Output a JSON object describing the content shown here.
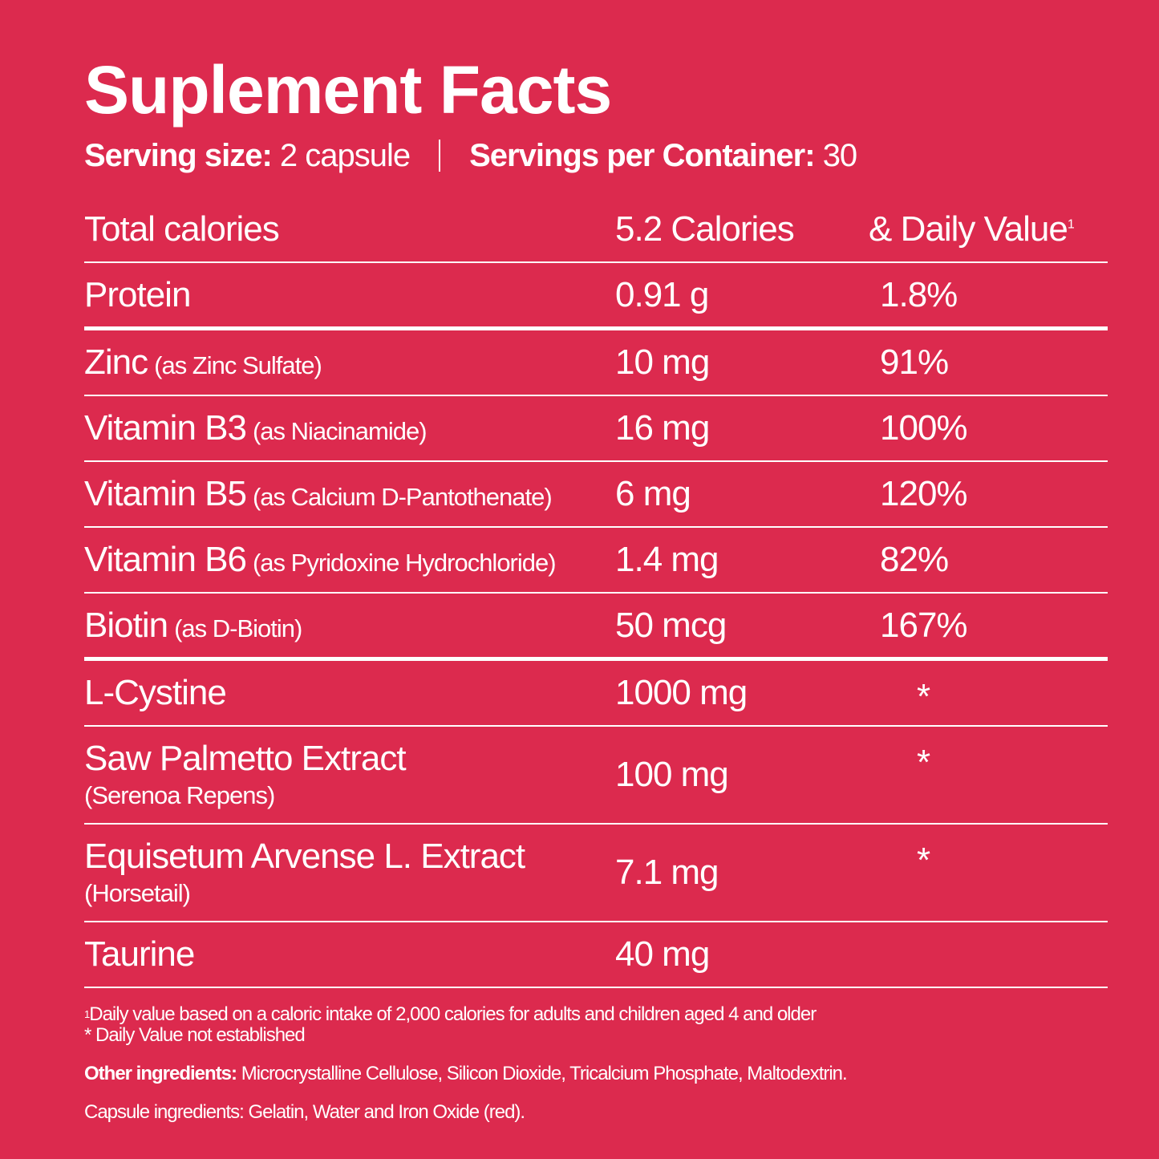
{
  "title": "Suplement Facts",
  "serving": {
    "size_label": "Serving size:",
    "size_value": "2 capsule",
    "servings_label": "Servings per Container:",
    "servings_value": "30"
  },
  "header": {
    "name": "Total calories",
    "amount": "5.2 Calories",
    "dv": "& Daily Value",
    "dv_sup": "1"
  },
  "rows": [
    {
      "name": "Protein",
      "amount": "0.91 g",
      "dv": "1.8%"
    },
    {
      "name": "Zinc",
      "note": "(as Zinc Sulfate)",
      "amount": "10 mg",
      "dv": "91%"
    },
    {
      "name": "Vitamin B3",
      "note": "(as Niacinamide)",
      "amount": "16 mg",
      "dv": "100%"
    },
    {
      "name": "Vitamin B5",
      "note": "(as Calcium D-Pantothenate)",
      "amount": "6 mg",
      "dv": "120%"
    },
    {
      "name": "Vitamin B6",
      "note": "(as Pyridoxine Hydrochloride)",
      "amount": "1.4 mg",
      "dv": "82%"
    },
    {
      "name": "Biotin",
      "note": "(as D-Biotin)",
      "amount": "50 mcg",
      "dv": "167%"
    },
    {
      "name": "L-Cystine",
      "amount": "1000 mg",
      "dv": "*"
    },
    {
      "name": "Saw Palmetto Extract",
      "note": "(Serenoa Repens)",
      "amount": "100 mg",
      "dv": "*"
    },
    {
      "name": "Equisetum Arvense L. Extract",
      "note": "(Horsetail)",
      "amount": "7.1 mg",
      "dv": "*"
    },
    {
      "name": "Taurine",
      "amount": "40 mg"
    }
  ],
  "footnotes": {
    "sup": "1",
    "daily_value": "Daily value based on a caloric intake of 2,000 calories for adults and children aged 4 and older",
    "not_established": "* Daily Value not established"
  },
  "other_ingredients": {
    "label": "Other ingredients:",
    "text": "Microcrystalline Cellulose, Silicon Dioxide, Tricalcium Phosphate, Maltodextrin."
  },
  "capsule_ingredients": "Capsule ingredients: Gelatin, Water and Iron Oxide (red)."
}
